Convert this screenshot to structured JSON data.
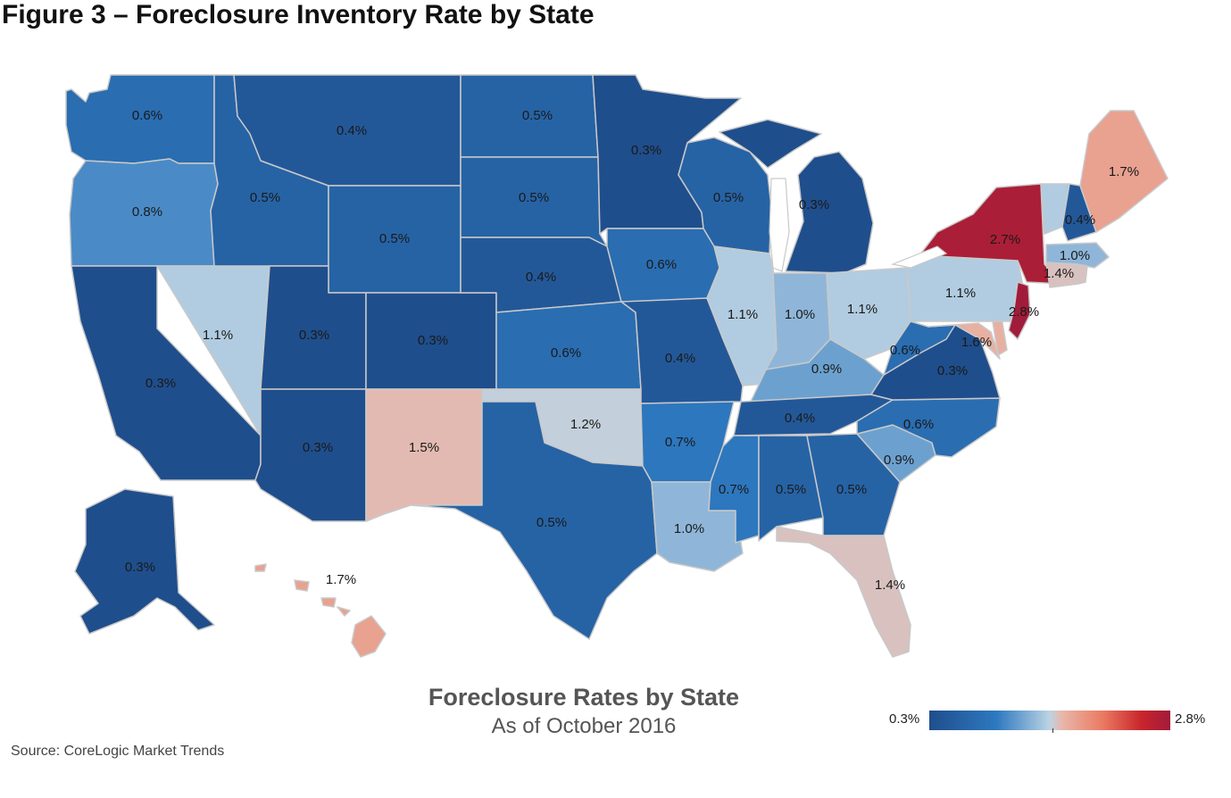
{
  "figure_title": "Figure 3 – Foreclosure Inventory Rate by State",
  "map_title": "Foreclosure Rates by State",
  "map_subtitle": "As of October 2016",
  "source": "Source: CoreLogic Market Trends",
  "legend": {
    "min_label": "0.3%",
    "max_label": "2.8%",
    "scale_colors": [
      "#1f4e8c",
      "#2e79c0",
      "#bcd3e3",
      "#e8b7aa",
      "#ea7a62",
      "#c9252c",
      "#a11c3a"
    ]
  },
  "states": {
    "WA": {
      "rate": 0.6,
      "label": "0.6%"
    },
    "OR": {
      "rate": 0.8,
      "label": "0.8%"
    },
    "CA": {
      "rate": 0.3,
      "label": "0.3%"
    },
    "NV": {
      "rate": 1.1,
      "label": "1.1%"
    },
    "ID": {
      "rate": 0.5,
      "label": "0.5%"
    },
    "MT": {
      "rate": 0.4,
      "label": "0.4%"
    },
    "WY": {
      "rate": 0.5,
      "label": "0.5%"
    },
    "UT": {
      "rate": 0.3,
      "label": "0.3%"
    },
    "AZ": {
      "rate": 0.3,
      "label": "0.3%"
    },
    "CO": {
      "rate": 0.3,
      "label": "0.3%"
    },
    "NM": {
      "rate": 1.5,
      "label": "1.5%"
    },
    "ND": {
      "rate": 0.5,
      "label": "0.5%"
    },
    "SD": {
      "rate": 0.5,
      "label": "0.5%"
    },
    "NE": {
      "rate": 0.4,
      "label": "0.4%"
    },
    "KS": {
      "rate": 0.6,
      "label": "0.6%"
    },
    "OK": {
      "rate": 1.2,
      "label": "1.2%"
    },
    "TX": {
      "rate": 0.5,
      "label": "0.5%"
    },
    "MN": {
      "rate": 0.3,
      "label": "0.3%"
    },
    "IA": {
      "rate": 0.6,
      "label": "0.6%"
    },
    "MO": {
      "rate": 0.4,
      "label": "0.4%"
    },
    "AR": {
      "rate": 0.7,
      "label": "0.7%"
    },
    "LA": {
      "rate": 1.0,
      "label": "1.0%"
    },
    "WI": {
      "rate": 0.5,
      "label": "0.5%"
    },
    "IL": {
      "rate": 1.1,
      "label": "1.1%"
    },
    "MI": {
      "rate": 0.3,
      "label": "0.3%"
    },
    "IN": {
      "rate": 1.0,
      "label": "1.0%"
    },
    "OH": {
      "rate": 1.1,
      "label": "1.1%"
    },
    "KY": {
      "rate": 0.9,
      "label": "0.9%"
    },
    "TN": {
      "rate": 0.4,
      "label": "0.4%"
    },
    "MS": {
      "rate": 0.7,
      "label": "0.7%"
    },
    "AL": {
      "rate": 0.5,
      "label": "0.5%"
    },
    "GA": {
      "rate": 0.5,
      "label": "0.5%"
    },
    "FL": {
      "rate": 1.4,
      "label": "1.4%"
    },
    "SC": {
      "rate": 0.9,
      "label": "0.9%"
    },
    "NC": {
      "rate": 0.6,
      "label": "0.6%"
    },
    "VA": {
      "rate": 0.3,
      "label": "0.3%"
    },
    "WV": {
      "rate": 0.6,
      "label": "0.6%"
    },
    "MD": {
      "rate": 1.6,
      "label": "1.6%"
    },
    "DE": {
      "rate": 1.6,
      "label": ""
    },
    "PA": {
      "rate": 1.1,
      "label": "1.1%"
    },
    "NJ": {
      "rate": 2.8,
      "label": "2.8%"
    },
    "NY": {
      "rate": 2.7,
      "label": "2.7%"
    },
    "CT": {
      "rate": 1.4,
      "label": "1.4%"
    },
    "RI": {
      "rate": 1.4,
      "label": ""
    },
    "MA": {
      "rate": 1.0,
      "label": "1.0%"
    },
    "VT": {
      "rate": 1.1,
      "label": ""
    },
    "NH": {
      "rate": 0.4,
      "label": "0.4%"
    },
    "ME": {
      "rate": 1.7,
      "label": "1.7%"
    },
    "AK": {
      "rate": 0.3,
      "label": "0.3%"
    },
    "HI": {
      "rate": 1.7,
      "label": "1.7%"
    }
  }
}
